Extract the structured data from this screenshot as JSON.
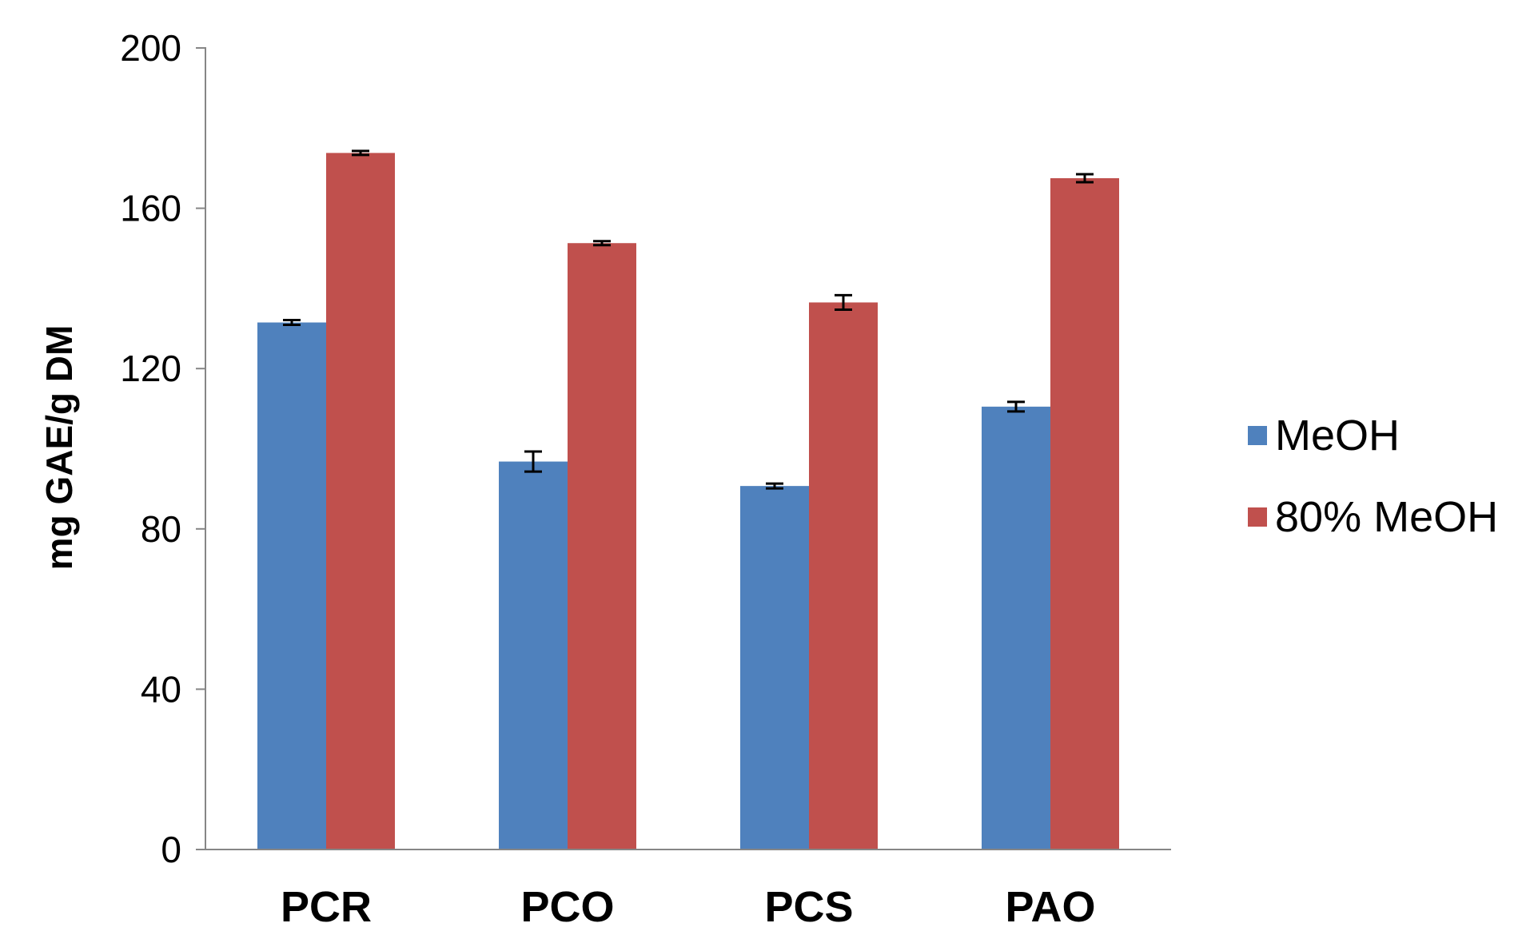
{
  "chart_data": {
    "type": "bar",
    "title": "",
    "xlabel": "",
    "ylabel": "mg GAE/g  DM",
    "ylim": [
      0,
      200
    ],
    "yticks": [
      0,
      40,
      80,
      120,
      160,
      200
    ],
    "categories": [
      "PCR",
      "PCO",
      "PCS",
      "PAO"
    ],
    "series": [
      {
        "name": "MeOH",
        "color": "#4f81bd",
        "values": [
          131.5,
          96.8,
          90.7,
          110.5
        ],
        "errors": [
          0.6,
          2.5,
          0.6,
          1.2
        ]
      },
      {
        "name": "80% MeOH",
        "color": "#c0504d",
        "values": [
          173.8,
          151.3,
          136.5,
          167.5
        ],
        "errors": [
          0.5,
          0.5,
          1.8,
          1.0
        ]
      }
    ],
    "grid": false,
    "legend_position": "right"
  }
}
